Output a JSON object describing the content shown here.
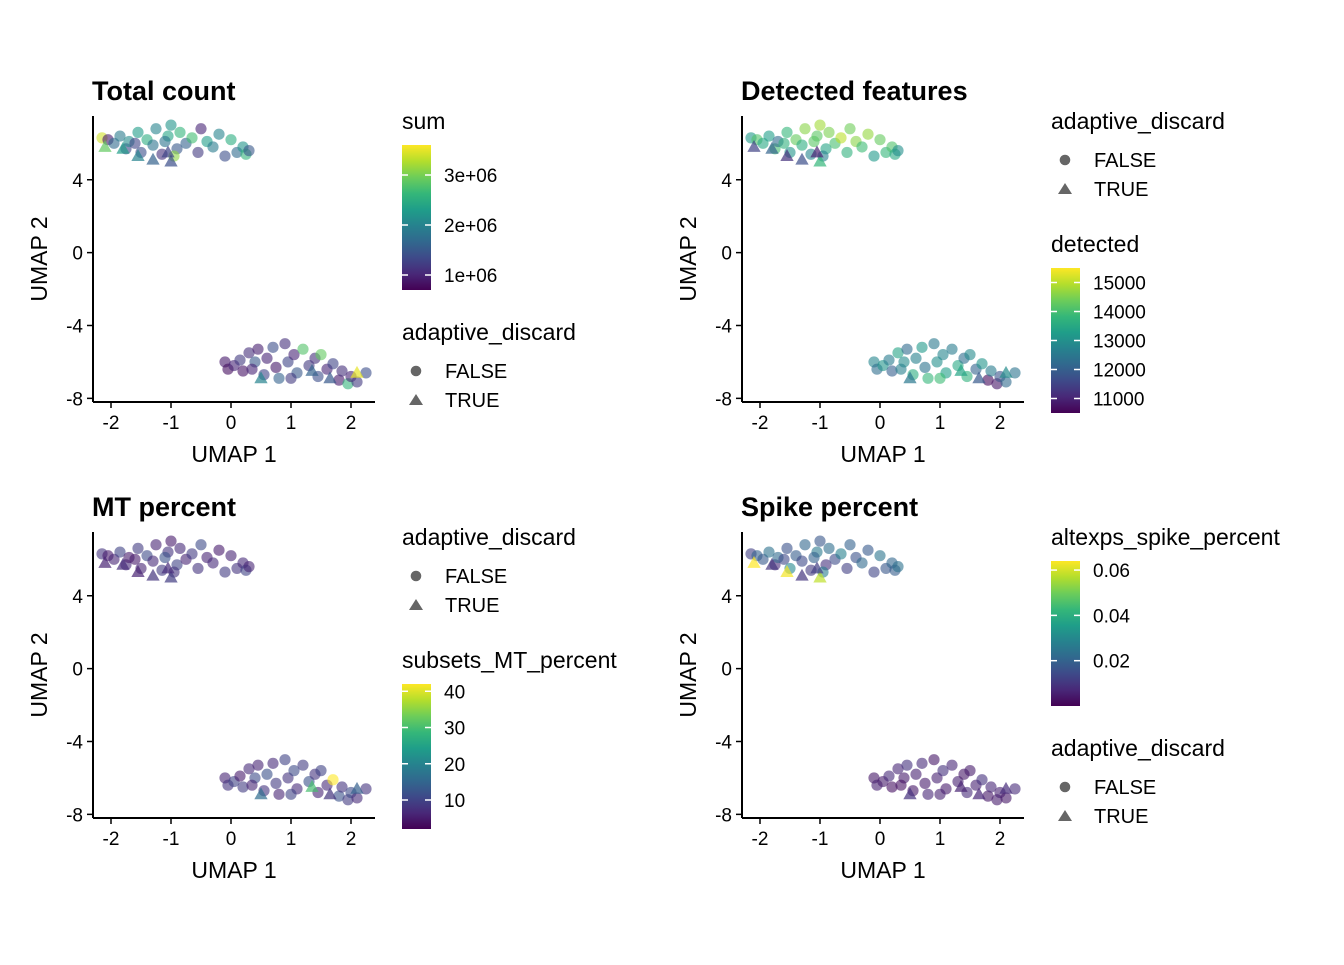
{
  "colors": {
    "viridis": [
      "#440154",
      "#482878",
      "#3E4A89",
      "#31688E",
      "#26828E",
      "#1F9E89",
      "#35B779",
      "#6DCD59",
      "#B4DE2C",
      "#FDE725"
    ],
    "axis": "#000000",
    "legend_shape": "#666666"
  },
  "chart_data": [
    {
      "type": "scatter",
      "title": "Total count",
      "xlabel": "UMAP 1",
      "ylabel": "UMAP 2",
      "xlim": [
        -2.3,
        2.4
      ],
      "ylim": [
        -8.2,
        7.5
      ],
      "x_ticks": [
        -2,
        -1,
        0,
        1,
        2
      ],
      "y_ticks": [
        -8,
        -4,
        0,
        4
      ],
      "grid": false,
      "color_by": "sum",
      "colorbar": {
        "title": "sum",
        "min": 700000,
        "max": 3600000,
        "ticks": [
          1000000,
          2000000,
          3000000
        ],
        "tick_labels": [
          "1e+06",
          "2e+06",
          "3e+06"
        ],
        "position": "top"
      },
      "shape_legend": {
        "title": "adaptive_discard",
        "entries": [
          "FALSE",
          "TRUE"
        ],
        "position": "bottom"
      }
    },
    {
      "type": "scatter",
      "title": "Detected features",
      "xlabel": "UMAP 1",
      "ylabel": "UMAP 2",
      "xlim": [
        -2.3,
        2.4
      ],
      "ylim": [
        -8.2,
        7.5
      ],
      "x_ticks": [
        -2,
        -1,
        0,
        1,
        2
      ],
      "y_ticks": [
        -8,
        -4,
        0,
        4
      ],
      "grid": false,
      "color_by": "detected",
      "colorbar": {
        "title": "detected",
        "min": 10500,
        "max": 15500,
        "ticks": [
          11000,
          12000,
          13000,
          14000,
          15000
        ],
        "tick_labels": [
          "11000",
          "12000",
          "13000",
          "14000",
          "15000"
        ],
        "position": "bottom"
      },
      "shape_legend": {
        "title": "adaptive_discard",
        "entries": [
          "FALSE",
          "TRUE"
        ],
        "position": "top"
      }
    },
    {
      "type": "scatter",
      "title": "MT percent",
      "xlabel": "UMAP 1",
      "ylabel": "UMAP 2",
      "xlim": [
        -2.3,
        2.4
      ],
      "ylim": [
        -8.2,
        7.5
      ],
      "x_ticks": [
        -2,
        -1,
        0,
        1,
        2
      ],
      "y_ticks": [
        -8,
        -4,
        0,
        4
      ],
      "grid": false,
      "color_by": "subsets_MT_percent",
      "colorbar": {
        "title": "subsets_MT_percent",
        "min": 2,
        "max": 42,
        "ticks": [
          10,
          20,
          30,
          40
        ],
        "tick_labels": [
          "10",
          "20",
          "30",
          "40"
        ],
        "position": "bottom"
      },
      "shape_legend": {
        "title": "adaptive_discard",
        "entries": [
          "FALSE",
          "TRUE"
        ],
        "position": "top"
      }
    },
    {
      "type": "scatter",
      "title": "Spike percent",
      "xlabel": "UMAP 1",
      "ylabel": "UMAP 2",
      "xlim": [
        -2.3,
        2.4
      ],
      "ylim": [
        -8.2,
        7.5
      ],
      "x_ticks": [
        -2,
        -1,
        0,
        1,
        2
      ],
      "y_ticks": [
        -8,
        -4,
        0,
        4
      ],
      "grid": false,
      "color_by": "altexps_spike_percent",
      "colorbar": {
        "title": "altexps_spike_percent",
        "min": 0.0,
        "max": 0.064,
        "ticks": [
          0.02,
          0.04,
          0.06
        ],
        "tick_labels": [
          "0.02",
          "0.04",
          "0.06"
        ],
        "position": "top"
      },
      "shape_legend": {
        "title": "adaptive_discard",
        "entries": [
          "FALSE",
          "TRUE"
        ],
        "position": "bottom"
      }
    }
  ],
  "cells": [
    {
      "x": -2.15,
      "y": 6.3,
      "shape": "circle",
      "sum": 3400000,
      "detected": 13200,
      "mt": 8,
      "spike": 0.012
    },
    {
      "x": -2.05,
      "y": 6.2,
      "shape": "circle",
      "sum": 900000,
      "detected": 14100,
      "mt": 5,
      "spike": 0.02
    },
    {
      "x": -1.95,
      "y": 6.0,
      "shape": "circle",
      "sum": 1700000,
      "detected": 13500,
      "mt": 6,
      "spike": 0.018
    },
    {
      "x": -1.85,
      "y": 6.4,
      "shape": "circle",
      "sum": 1900000,
      "detected": 13300,
      "mt": 10,
      "spike": 0.024
    },
    {
      "x": -1.75,
      "y": 5.7,
      "shape": "circle",
      "sum": 1300000,
      "detected": 14000,
      "mt": 7,
      "spike": 0.008
    },
    {
      "x": -1.7,
      "y": 6.1,
      "shape": "circle",
      "sum": 2100000,
      "detected": 12200,
      "mt": 5,
      "spike": 0.022
    },
    {
      "x": -1.55,
      "y": 6.6,
      "shape": "circle",
      "sum": 2300000,
      "detected": 13800,
      "mt": 9,
      "spike": 0.016
    },
    {
      "x": -1.5,
      "y": 5.5,
      "shape": "circle",
      "sum": 1400000,
      "detected": 13100,
      "mt": 6,
      "spike": 0.03
    },
    {
      "x": -1.4,
      "y": 6.2,
      "shape": "circle",
      "sum": 2500000,
      "detected": 14300,
      "mt": 11,
      "spike": 0.019
    },
    {
      "x": -1.3,
      "y": 5.9,
      "shape": "circle",
      "sum": 1800000,
      "detected": 13600,
      "mt": 7,
      "spike": 0.014
    },
    {
      "x": -1.25,
      "y": 6.8,
      "shape": "circle",
      "sum": 2000000,
      "detected": 14600,
      "mt": 6,
      "spike": 0.021
    },
    {
      "x": -1.15,
      "y": 5.4,
      "shape": "circle",
      "sum": 1100000,
      "detected": 12800,
      "mt": 9,
      "spike": 0.011
    },
    {
      "x": -1.05,
      "y": 6.4,
      "shape": "circle",
      "sum": 2400000,
      "detected": 14200,
      "mt": 8,
      "spike": 0.026
    },
    {
      "x": -1.0,
      "y": 7.0,
      "shape": "circle",
      "sum": 2200000,
      "detected": 14800,
      "mt": 5,
      "spike": 0.017
    },
    {
      "x": -0.9,
      "y": 5.7,
      "shape": "circle",
      "sum": 1500000,
      "detected": 13400,
      "mt": 10,
      "spike": 0.009
    },
    {
      "x": -0.85,
      "y": 6.6,
      "shape": "circle",
      "sum": 2600000,
      "detected": 14500,
      "mt": 7,
      "spike": 0.023
    },
    {
      "x": -0.75,
      "y": 6.0,
      "shape": "circle",
      "sum": 1600000,
      "detected": 14000,
      "mt": 6,
      "spike": 0.015
    },
    {
      "x": -0.65,
      "y": 6.3,
      "shape": "circle",
      "sum": 2700000,
      "detected": 15000,
      "mt": 9,
      "spike": 0.028
    },
    {
      "x": -0.55,
      "y": 5.5,
      "shape": "circle",
      "sum": 1200000,
      "detected": 13700,
      "mt": 8,
      "spike": 0.012
    },
    {
      "x": -0.5,
      "y": 6.8,
      "shape": "circle",
      "sum": 1000000,
      "detected": 14400,
      "mt": 11,
      "spike": 0.02
    },
    {
      "x": -0.4,
      "y": 6.1,
      "shape": "circle",
      "sum": 2300000,
      "detected": 14600,
      "mt": 6,
      "spike": 0.016
    },
    {
      "x": -0.3,
      "y": 5.8,
      "shape": "circle",
      "sum": 1900000,
      "detected": 13900,
      "mt": 7,
      "spike": 0.022
    },
    {
      "x": -0.2,
      "y": 6.5,
      "shape": "circle",
      "sum": 2000000,
      "detected": 14700,
      "mt": 5,
      "spike": 0.018
    },
    {
      "x": -0.1,
      "y": 5.3,
      "shape": "circle",
      "sum": 1400000,
      "detected": 13200,
      "mt": 9,
      "spike": 0.013
    },
    {
      "x": 0.0,
      "y": 6.2,
      "shape": "circle",
      "sum": 2500000,
      "detected": 14300,
      "mt": 6,
      "spike": 0.025
    },
    {
      "x": 0.1,
      "y": 5.5,
      "shape": "circle",
      "sum": 1700000,
      "detected": 13800,
      "mt": 8,
      "spike": 0.017
    },
    {
      "x": 0.2,
      "y": 5.8,
      "shape": "circle",
      "sum": 2200000,
      "detected": 14100,
      "mt": 7,
      "spike": 0.021
    },
    {
      "x": 0.25,
      "y": 5.4,
      "shape": "circle",
      "sum": 2600000,
      "detected": 13500,
      "mt": 10,
      "spike": 0.019
    },
    {
      "x": 0.3,
      "y": 5.6,
      "shape": "circle",
      "sum": 1500000,
      "detected": 13000,
      "mt": 6,
      "spike": 0.024
    },
    {
      "x": -1.6,
      "y": 6.0,
      "shape": "circle",
      "sum": 1300000,
      "detected": 13700,
      "mt": 5,
      "spike": 0.014
    },
    {
      "x": -1.1,
      "y": 6.1,
      "shape": "circle",
      "sum": 1800000,
      "detected": 14200,
      "mt": 12,
      "spike": 0.02
    },
    {
      "x": -0.95,
      "y": 5.3,
      "shape": "circle",
      "sum": 3100000,
      "detected": 12700,
      "mt": 8,
      "spike": 0.027
    },
    {
      "x": -2.1,
      "y": 5.8,
      "shape": "triangle",
      "sum": 2900000,
      "detected": 11500,
      "mt": 6,
      "spike": 0.064
    },
    {
      "x": -1.8,
      "y": 5.7,
      "shape": "triangle",
      "sum": 2300000,
      "detected": 12100,
      "mt": 7,
      "spike": 0.01
    },
    {
      "x": -1.55,
      "y": 5.3,
      "shape": "triangle",
      "sum": 2000000,
      "detected": 11200,
      "mt": 6,
      "spike": 0.063
    },
    {
      "x": -1.3,
      "y": 5.1,
      "shape": "triangle",
      "sum": 1600000,
      "detected": 11700,
      "mt": 8,
      "spike": 0.01
    },
    {
      "x": -1.0,
      "y": 5.0,
      "shape": "triangle",
      "sum": 1400000,
      "detected": 13800,
      "mt": 9,
      "spike": 0.058
    },
    {
      "x": -1.05,
      "y": 5.5,
      "shape": "triangle",
      "sum": 1300000,
      "detected": 11000,
      "mt": 7,
      "spike": 0.012
    },
    {
      "x": -0.1,
      "y": -6.0,
      "shape": "circle",
      "sum": 900000,
      "detected": 12800,
      "mt": 6,
      "spike": 0.004
    },
    {
      "x": -0.05,
      "y": -6.4,
      "shape": "circle",
      "sum": 800000,
      "detected": 12300,
      "mt": 8,
      "spike": 0.006
    },
    {
      "x": 0.05,
      "y": -6.2,
      "shape": "circle",
      "sum": 1000000,
      "detected": 13100,
      "mt": 10,
      "spike": 0.005
    },
    {
      "x": 0.15,
      "y": -5.9,
      "shape": "circle",
      "sum": 1200000,
      "detected": 12600,
      "mt": 5,
      "spike": 0.008
    },
    {
      "x": 0.2,
      "y": -6.5,
      "shape": "circle",
      "sum": 850000,
      "detected": 12000,
      "mt": 9,
      "spike": 0.003
    },
    {
      "x": 0.3,
      "y": -5.5,
      "shape": "circle",
      "sum": 1100000,
      "detected": 13400,
      "mt": 7,
      "spike": 0.007
    },
    {
      "x": 0.4,
      "y": -6.0,
      "shape": "circle",
      "sum": 1500000,
      "detected": 12900,
      "mt": 11,
      "spike": 0.005
    },
    {
      "x": 0.45,
      "y": -5.3,
      "shape": "circle",
      "sum": 950000,
      "detected": 12200,
      "mt": 6,
      "spike": 0.009
    },
    {
      "x": 0.55,
      "y": -6.7,
      "shape": "circle",
      "sum": 1300000,
      "detected": 13600,
      "mt": 8,
      "spike": 0.004
    },
    {
      "x": 0.6,
      "y": -5.8,
      "shape": "circle",
      "sum": 1000000,
      "detected": 12700,
      "mt": 12,
      "spike": 0.006
    },
    {
      "x": 0.7,
      "y": -5.2,
      "shape": "circle",
      "sum": 1400000,
      "detected": 13200,
      "mt": 7,
      "spike": 0.008
    },
    {
      "x": 0.75,
      "y": -6.3,
      "shape": "circle",
      "sum": 900000,
      "detected": 12400,
      "mt": 9,
      "spike": 0.005
    },
    {
      "x": 0.8,
      "y": -6.9,
      "shape": "circle",
      "sum": 1600000,
      "detected": 13800,
      "mt": 6,
      "spike": 0.007
    },
    {
      "x": 0.9,
      "y": -5.0,
      "shape": "circle",
      "sum": 1100000,
      "detected": 12500,
      "mt": 10,
      "spike": 0.004
    },
    {
      "x": 0.95,
      "y": -6.0,
      "shape": "circle",
      "sum": 1300000,
      "detected": 13000,
      "mt": 8,
      "spike": 0.006
    },
    {
      "x": 1.05,
      "y": -5.6,
      "shape": "circle",
      "sum": 1000000,
      "detected": 12800,
      "mt": 11,
      "spike": 0.009
    },
    {
      "x": 1.1,
      "y": -6.6,
      "shape": "circle",
      "sum": 1500000,
      "detected": 13300,
      "mt": 7,
      "spike": 0.005
    },
    {
      "x": 1.2,
      "y": -5.3,
      "shape": "circle",
      "sum": 2800000,
      "detected": 12600,
      "mt": 9,
      "spike": 0.007
    },
    {
      "x": 1.3,
      "y": -6.2,
      "shape": "circle",
      "sum": 1200000,
      "detected": 13500,
      "mt": 12,
      "spike": 0.006
    },
    {
      "x": 1.4,
      "y": -5.8,
      "shape": "circle",
      "sum": 1100000,
      "detected": 12300,
      "mt": 8,
      "spike": 0.004
    },
    {
      "x": 1.45,
      "y": -6.8,
      "shape": "circle",
      "sum": 1400000,
      "detected": 13700,
      "mt": 6,
      "spike": 0.008
    },
    {
      "x": 1.5,
      "y": -5.6,
      "shape": "circle",
      "sum": 2900000,
      "detected": 12900,
      "mt": 10,
      "spike": 0.005
    },
    {
      "x": 1.6,
      "y": -6.4,
      "shape": "circle",
      "sum": 1000000,
      "detected": 12100,
      "mt": 7,
      "spike": 0.006
    },
    {
      "x": 1.7,
      "y": -6.1,
      "shape": "circle",
      "sum": 1300000,
      "detected": 13100,
      "mt": 42,
      "spike": 0.009
    },
    {
      "x": 1.8,
      "y": -7.0,
      "shape": "circle",
      "sum": 900000,
      "detected": 10600,
      "mt": 12,
      "spike": 0.004
    },
    {
      "x": 1.85,
      "y": -6.5,
      "shape": "circle",
      "sum": 1100000,
      "detected": 12600,
      "mt": 8,
      "spike": 0.007
    },
    {
      "x": 1.95,
      "y": -7.2,
      "shape": "circle",
      "sum": 2600000,
      "detected": 10800,
      "mt": 9,
      "spike": 0.005
    },
    {
      "x": 2.0,
      "y": -6.8,
      "shape": "circle",
      "sum": 1000000,
      "detected": 11800,
      "mt": 11,
      "spike": 0.006
    },
    {
      "x": 2.1,
      "y": -7.1,
      "shape": "circle",
      "sum": 1200000,
      "detected": 12200,
      "mt": 7,
      "spike": 0.004
    },
    {
      "x": 2.25,
      "y": -6.6,
      "shape": "circle",
      "sum": 1400000,
      "detected": 12400,
      "mt": 8,
      "spike": 0.008
    },
    {
      "x": 0.35,
      "y": -6.4,
      "shape": "circle",
      "sum": 1000000,
      "detected": 12700,
      "mt": 6,
      "spike": 0.003
    },
    {
      "x": 1.0,
      "y": -6.9,
      "shape": "circle",
      "sum": 1200000,
      "detected": 13900,
      "mt": 10,
      "spike": 0.006
    },
    {
      "x": 0.5,
      "y": -6.9,
      "shape": "triangle",
      "sum": 2000000,
      "detected": 12500,
      "mt": 16,
      "spike": 0.009
    },
    {
      "x": 1.35,
      "y": -6.5,
      "shape": "triangle",
      "sum": 1600000,
      "detected": 13400,
      "mt": 30,
      "spike": 0.006
    },
    {
      "x": 1.65,
      "y": -6.9,
      "shape": "triangle",
      "sum": 1500000,
      "detected": 11900,
      "mt": 8,
      "spike": 0.007
    },
    {
      "x": 2.1,
      "y": -6.6,
      "shape": "triangle",
      "sum": 3500000,
      "detected": 12900,
      "mt": 14,
      "spike": 0.008
    }
  ]
}
